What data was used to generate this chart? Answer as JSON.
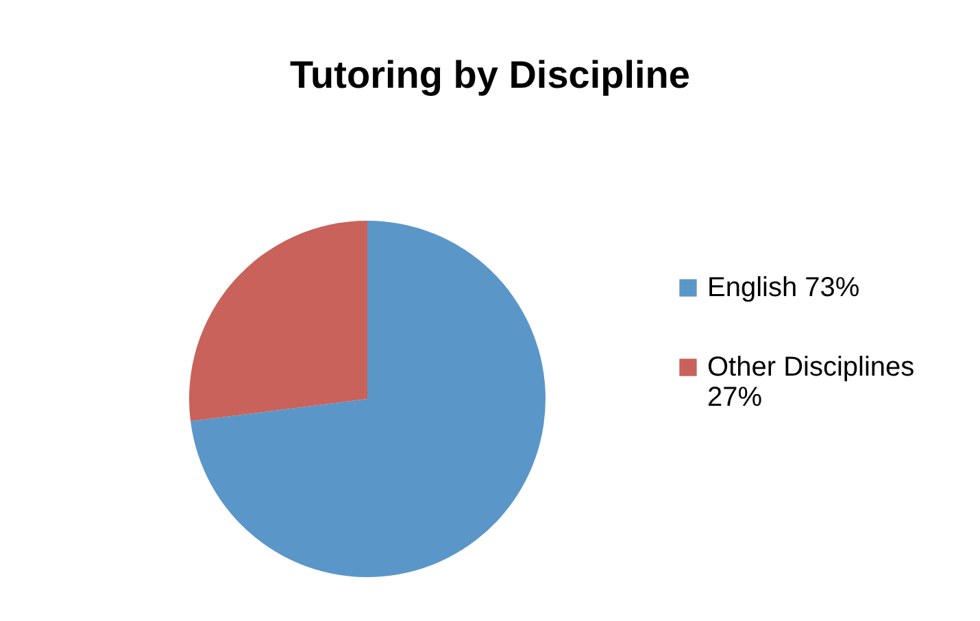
{
  "chart_data": {
    "type": "pie",
    "title": "Tutoring by Discipline",
    "categories": [
      "English 73%",
      "Other Disciplines 27%"
    ],
    "values": [
      73,
      27
    ],
    "colors": [
      "#5b96c9",
      "#c8625b"
    ],
    "legend": "right"
  }
}
